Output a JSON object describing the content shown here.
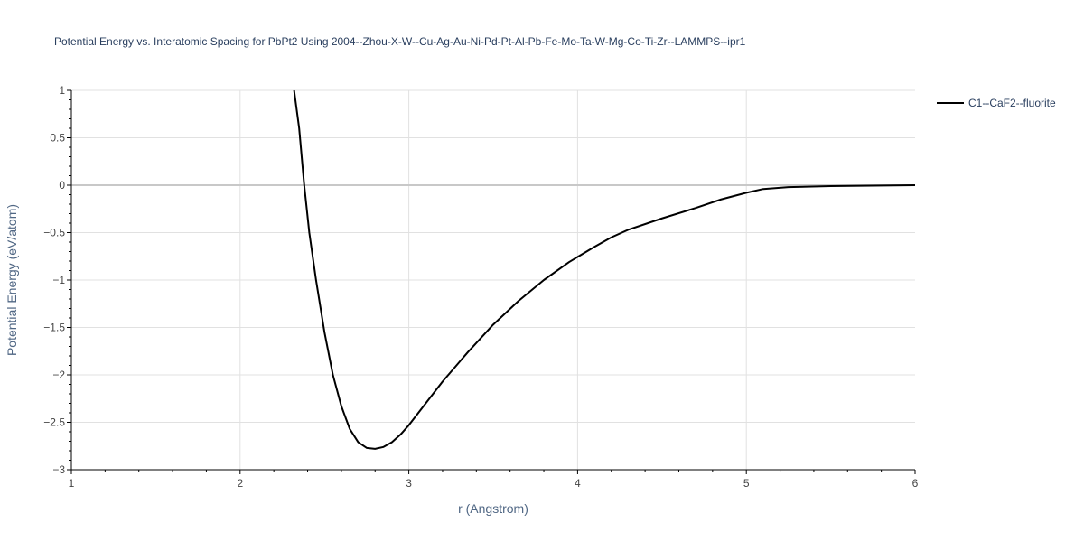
{
  "chart_data": {
    "type": "line",
    "title": "Potential Energy vs. Interatomic Spacing for PbPt2 Using 2004--Zhou-X-W--Cu-Ag-Au-Ni-Pd-Pt-Al-Pb-Fe-Mo-Ta-W-Mg-Co-Ti-Zr--LAMMPS--ipr1",
    "xlabel": "r (Angstrom)",
    "ylabel": "Potential Energy (eV/atom)",
    "xlim": [
      1,
      6
    ],
    "ylim": [
      -3,
      1
    ],
    "xticks": [
      1,
      2,
      3,
      4,
      5,
      6
    ],
    "xtick_labels": [
      "1",
      "2",
      "3",
      "4",
      "5",
      "6"
    ],
    "yticks": [
      -3,
      -2.5,
      -2,
      -1.5,
      -1,
      -0.5,
      0,
      0.5,
      1
    ],
    "ytick_labels": [
      "−3",
      "−2.5",
      "−2",
      "−1.5",
      "−1",
      "−0.5",
      "0",
      "0.5",
      "1"
    ],
    "grid": true,
    "legend_position": "top-right",
    "series": [
      {
        "name": "C1--CaF2--fluorite",
        "color": "#000000",
        "x": [
          2.32,
          2.35,
          2.38,
          2.41,
          2.45,
          2.5,
          2.55,
          2.6,
          2.65,
          2.7,
          2.75,
          2.8,
          2.85,
          2.9,
          2.95,
          3.0,
          3.1,
          3.2,
          3.35,
          3.5,
          3.65,
          3.8,
          3.95,
          4.1,
          4.2,
          4.3,
          4.5,
          4.7,
          4.85,
          5.0,
          5.1,
          5.25,
          5.5,
          6.0
        ],
        "y": [
          1.0,
          0.6,
          0.0,
          -0.5,
          -1.0,
          -1.55,
          -2.0,
          -2.33,
          -2.57,
          -2.71,
          -2.77,
          -2.78,
          -2.76,
          -2.71,
          -2.63,
          -2.53,
          -2.3,
          -2.07,
          -1.76,
          -1.47,
          -1.22,
          -1.0,
          -0.81,
          -0.65,
          -0.55,
          -0.47,
          -0.35,
          -0.24,
          -0.15,
          -0.08,
          -0.04,
          -0.02,
          -0.01,
          0.0
        ]
      }
    ]
  }
}
